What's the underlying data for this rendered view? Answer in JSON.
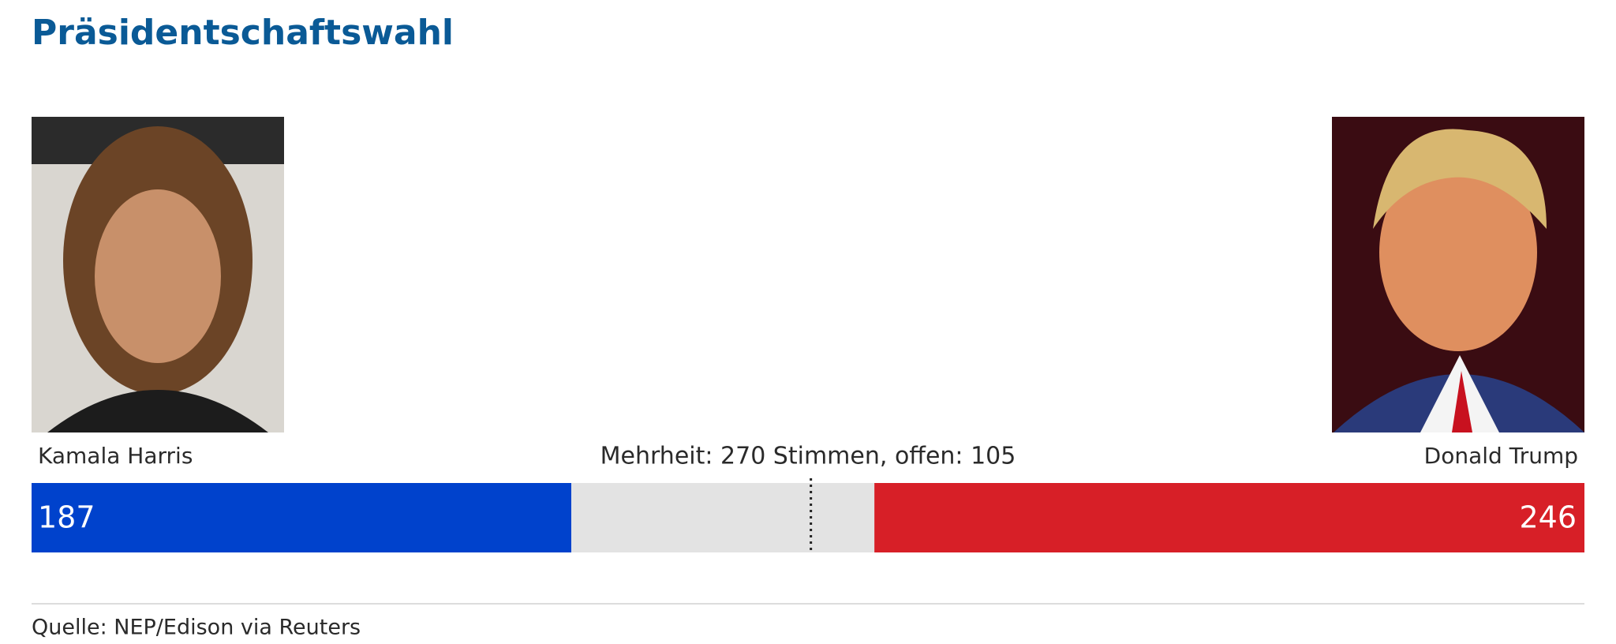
{
  "chart_data": {
    "type": "stacked-bar",
    "orientation": "horizontal",
    "title": "Präsidentschaftswahl",
    "annotation": "Mehrheit: 270 Stimmen, offen: 105",
    "source": "Quelle: NEP/Edison via Reuters",
    "series": [
      {
        "name": "Kamala Harris",
        "color": "#0042cc",
        "values": [
          187
        ]
      },
      {
        "color": "#e3e3e3",
        "values": [
          105
        ]
      },
      {
        "name": "Donald Trump",
        "color": "#d71f27",
        "values": [
          246
        ]
      }
    ],
    "xlim": [
      0,
      538
    ],
    "reference_line": {
      "value": 270
    }
  }
}
